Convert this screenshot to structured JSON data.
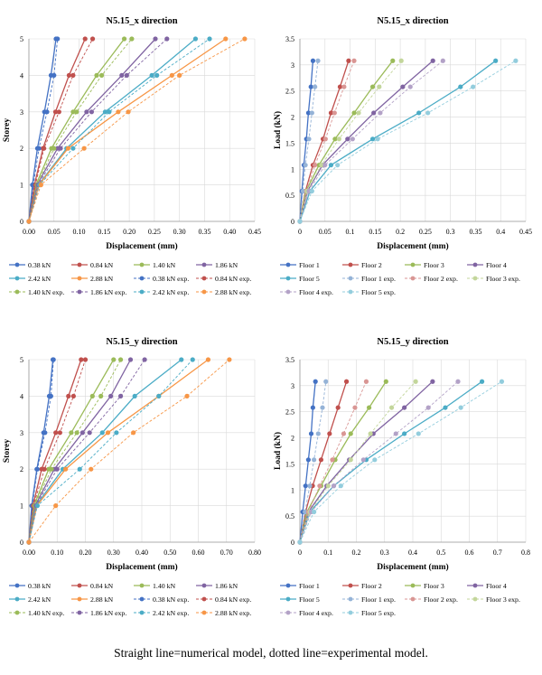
{
  "footnote": "Straight line=numerical model, dotted line=experimental model.",
  "colors": {
    "blue": "#4472c4",
    "red": "#c0504d",
    "green": "#9bbb59",
    "purple": "#8064a2",
    "teal": "#4bacc6",
    "orange": "#f79646",
    "lightblue": "#95b3d7",
    "pink": "#d99694",
    "lightgreen": "#c3d69b",
    "lightpurple": "#b3a2c7",
    "lightteal": "#93cddd"
  },
  "chart_data": [
    {
      "type": "line",
      "title": "N5.15_x direction",
      "xlabel": "Displacement (mm)",
      "ylabel": "Storey",
      "xlim": [
        0,
        0.45
      ],
      "ylim": [
        0,
        5
      ],
      "xticks": [
        "0.00",
        "0.05",
        "0.10",
        "0.15",
        "0.20",
        "0.25",
        "0.30",
        "0.35",
        "0.40",
        "0.45"
      ],
      "yticks": [
        "0",
        "1",
        "2",
        "3",
        "4",
        "5"
      ],
      "series": [
        {
          "name": "0.38 kN",
          "color": "#4472c4",
          "dashed": false,
          "x": [
            0,
            0.007,
            0.017,
            0.031,
            0.044,
            0.054
          ],
          "y": [
            0,
            1,
            2,
            3,
            4,
            5
          ]
        },
        {
          "name": "0.84 kN",
          "color": "#c0504d",
          "dashed": false,
          "x": [
            0,
            0.011,
            0.028,
            0.053,
            0.08,
            0.112
          ],
          "y": [
            0,
            1,
            2,
            3,
            4,
            5
          ]
        },
        {
          "name": "1.40 kN",
          "color": "#9bbb59",
          "dashed": false,
          "x": [
            0,
            0.014,
            0.045,
            0.088,
            0.135,
            0.19
          ],
          "y": [
            0,
            1,
            2,
            3,
            4,
            5
          ]
        },
        {
          "name": "1.86 kN",
          "color": "#8064a2",
          "dashed": false,
          "x": [
            0,
            0.016,
            0.057,
            0.115,
            0.185,
            0.252
          ],
          "y": [
            0,
            1,
            2,
            3,
            4,
            5
          ]
        },
        {
          "name": "2.42 kN",
          "color": "#4bacc6",
          "dashed": false,
          "x": [
            0,
            0.019,
            0.075,
            0.152,
            0.245,
            0.332
          ],
          "y": [
            0,
            1,
            2,
            3,
            4,
            5
          ]
        },
        {
          "name": "2.88 kN",
          "color": "#f79646",
          "dashed": false,
          "x": [
            0,
            0.02,
            0.078,
            0.178,
            0.285,
            0.392
          ],
          "y": [
            0,
            1,
            2,
            3,
            4,
            5
          ]
        },
        {
          "name": "0.38 kN exp.",
          "color": "#4472c4",
          "dashed": true,
          "x": [
            0,
            0.009,
            0.02,
            0.036,
            0.05,
            0.057
          ],
          "y": [
            0,
            1,
            2,
            3,
            4,
            5
          ]
        },
        {
          "name": "0.84 kN exp.",
          "color": "#c0504d",
          "dashed": true,
          "x": [
            0,
            0.013,
            0.03,
            0.06,
            0.088,
            0.127
          ],
          "y": [
            0,
            1,
            2,
            3,
            4,
            5
          ]
        },
        {
          "name": "1.40 kN exp.",
          "color": "#9bbb59",
          "dashed": true,
          "x": [
            0,
            0.016,
            0.05,
            0.095,
            0.145,
            0.205
          ],
          "y": [
            0,
            1,
            2,
            3,
            4,
            5
          ]
        },
        {
          "name": "1.86 kN exp.",
          "color": "#8064a2",
          "dashed": true,
          "x": [
            0,
            0.018,
            0.063,
            0.125,
            0.195,
            0.275
          ],
          "y": [
            0,
            1,
            2,
            3,
            4,
            5
          ]
        },
        {
          "name": "2.42 kN exp.",
          "color": "#4bacc6",
          "dashed": true,
          "x": [
            0,
            0.021,
            0.088,
            0.16,
            0.255,
            0.36
          ],
          "y": [
            0,
            1,
            2,
            3,
            4,
            5
          ]
        },
        {
          "name": "2.88 kN exp.",
          "color": "#f79646",
          "dashed": true,
          "x": [
            0,
            0.024,
            0.11,
            0.198,
            0.3,
            0.43
          ],
          "y": [
            0,
            1,
            2,
            3,
            4,
            5
          ]
        }
      ]
    },
    {
      "type": "line",
      "title": "N5.15_x direction",
      "xlabel": "Displacement (mm)",
      "ylabel": "Load (kN)",
      "xlim": [
        0,
        0.45
      ],
      "ylim": [
        0,
        3.5
      ],
      "xticks": [
        "0",
        "0.05",
        "0.1",
        "0.15",
        "0.2",
        "0.25",
        "0.3",
        "0.35",
        "0.4",
        "0.45"
      ],
      "yticks": [
        "0",
        "0.5",
        "1",
        "1.5",
        "2",
        "2.5",
        "3",
        "3.5"
      ],
      "series": [
        {
          "name": "Floor 1",
          "color": "#4472c4",
          "dashed": false,
          "x": [
            0,
            0.004,
            0.008,
            0.013,
            0.017,
            0.022,
            0.026
          ],
          "y": [
            0,
            0.58,
            1.08,
            1.58,
            2.08,
            2.58,
            3.08
          ]
        },
        {
          "name": "Floor 2",
          "color": "#c0504d",
          "dashed": false,
          "x": [
            0,
            0.011,
            0.026,
            0.046,
            0.062,
            0.08,
            0.097
          ],
          "y": [
            0,
            0.58,
            1.08,
            1.58,
            2.08,
            2.58,
            3.08
          ]
        },
        {
          "name": "Floor 3",
          "color": "#9bbb59",
          "dashed": false,
          "x": [
            0,
            0.012,
            0.038,
            0.07,
            0.108,
            0.145,
            0.185
          ],
          "y": [
            0,
            0.58,
            1.08,
            1.58,
            2.08,
            2.58,
            3.08
          ]
        },
        {
          "name": "Floor 4",
          "color": "#8064a2",
          "dashed": false,
          "x": [
            0,
            0.015,
            0.045,
            0.095,
            0.147,
            0.205,
            0.265
          ],
          "y": [
            0,
            0.58,
            1.08,
            1.58,
            2.08,
            2.58,
            3.08
          ]
        },
        {
          "name": "Floor 5",
          "color": "#4bacc6",
          "dashed": false,
          "x": [
            0,
            0.02,
            0.062,
            0.145,
            0.237,
            0.32,
            0.39
          ],
          "y": [
            0,
            0.58,
            1.08,
            1.58,
            2.08,
            2.58,
            3.08
          ]
        },
        {
          "name": "Floor 1 exp.",
          "color": "#95b3d7",
          "dashed": true,
          "x": [
            0,
            0.006,
            0.011,
            0.018,
            0.024,
            0.03,
            0.036
          ],
          "y": [
            0,
            0.58,
            1.08,
            1.58,
            2.08,
            2.58,
            3.08
          ]
        },
        {
          "name": "Floor 2 exp.",
          "color": "#d99694",
          "dashed": true,
          "x": [
            0,
            0.013,
            0.03,
            0.051,
            0.069,
            0.088,
            0.108
          ],
          "y": [
            0,
            0.58,
            1.08,
            1.58,
            2.08,
            2.58,
            3.08
          ]
        },
        {
          "name": "Floor 3 exp.",
          "color": "#c3d69b",
          "dashed": true,
          "x": [
            0,
            0.014,
            0.043,
            0.078,
            0.117,
            0.158,
            0.202
          ],
          "y": [
            0,
            0.58,
            1.08,
            1.58,
            2.08,
            2.58,
            3.08
          ]
        },
        {
          "name": "Floor 4 exp.",
          "color": "#b3a2c7",
          "dashed": true,
          "x": [
            0,
            0.018,
            0.05,
            0.105,
            0.16,
            0.22,
            0.285
          ],
          "y": [
            0,
            0.58,
            1.08,
            1.58,
            2.08,
            2.58,
            3.08
          ]
        },
        {
          "name": "Floor 5 exp.",
          "color": "#93cddd",
          "dashed": true,
          "x": [
            0,
            0.024,
            0.075,
            0.155,
            0.255,
            0.345,
            0.43
          ],
          "y": [
            0,
            0.58,
            1.08,
            1.58,
            2.08,
            2.58,
            3.08
          ]
        }
      ]
    },
    {
      "type": "line",
      "title": "N5.15_y direction",
      "xlabel": "Displacement (mm)",
      "ylabel": "Storey",
      "xlim": [
        0,
        0.8
      ],
      "ylim": [
        0,
        5
      ],
      "xticks": [
        "0.00",
        "0.10",
        "0.20",
        "0.30",
        "0.40",
        "0.50",
        "0.60",
        "0.70",
        "0.80"
      ],
      "yticks": [
        "0",
        "1",
        "2",
        "3",
        "4",
        "5"
      ],
      "series": [
        {
          "name": "0.38 kN",
          "color": "#4472c4",
          "dashed": false,
          "x": [
            0,
            0.01,
            0.028,
            0.052,
            0.072,
            0.085
          ],
          "y": [
            0,
            1,
            2,
            3,
            4,
            5
          ]
        },
        {
          "name": "0.84 kN",
          "color": "#c0504d",
          "dashed": false,
          "x": [
            0,
            0.014,
            0.045,
            0.095,
            0.14,
            0.185
          ],
          "y": [
            0,
            1,
            2,
            3,
            4,
            5
          ]
        },
        {
          "name": "1.40 kN",
          "color": "#9bbb59",
          "dashed": false,
          "x": [
            0,
            0.018,
            0.07,
            0.15,
            0.225,
            0.3
          ],
          "y": [
            0,
            1,
            2,
            3,
            4,
            5
          ]
        },
        {
          "name": "1.86 kN",
          "color": "#8064a2",
          "dashed": false,
          "x": [
            0,
            0.022,
            0.09,
            0.19,
            0.29,
            0.36
          ],
          "y": [
            0,
            1,
            2,
            3,
            4,
            5
          ]
        },
        {
          "name": "2.42 kN",
          "color": "#4bacc6",
          "dashed": false,
          "x": [
            0,
            0.025,
            0.12,
            0.26,
            0.375,
            0.54
          ],
          "y": [
            0,
            1,
            2,
            3,
            4,
            5
          ]
        },
        {
          "name": "2.88 kN",
          "color": "#f79646",
          "dashed": false,
          "x": [
            0,
            0.028,
            0.13,
            0.28,
            0.46,
            0.635
          ],
          "y": [
            0,
            1,
            2,
            3,
            4,
            5
          ]
        },
        {
          "name": "0.38 kN exp.",
          "color": "#4472c4",
          "dashed": true,
          "x": [
            0,
            0.012,
            0.03,
            0.057,
            0.078,
            0.087
          ],
          "y": [
            0,
            1,
            2,
            3,
            4,
            5
          ]
        },
        {
          "name": "0.84 kN exp.",
          "color": "#c0504d",
          "dashed": true,
          "x": [
            0,
            0.016,
            0.055,
            0.11,
            0.158,
            0.2
          ],
          "y": [
            0,
            1,
            2,
            3,
            4,
            5
          ]
        },
        {
          "name": "1.40 kN exp.",
          "color": "#9bbb59",
          "dashed": true,
          "x": [
            0,
            0.02,
            0.08,
            0.17,
            0.255,
            0.325
          ],
          "y": [
            0,
            1,
            2,
            3,
            4,
            5
          ]
        },
        {
          "name": "1.86 kN exp.",
          "color": "#8064a2",
          "dashed": true,
          "x": [
            0,
            0.025,
            0.1,
            0.215,
            0.325,
            0.41
          ],
          "y": [
            0,
            1,
            2,
            3,
            4,
            5
          ]
        },
        {
          "name": "2.42 kN exp.",
          "color": "#4bacc6",
          "dashed": true,
          "x": [
            0,
            0.03,
            0.18,
            0.31,
            0.46,
            0.58
          ],
          "y": [
            0,
            1,
            2,
            3,
            4,
            5
          ]
        },
        {
          "name": "2.88 kN exp.",
          "color": "#f79646",
          "dashed": true,
          "x": [
            0,
            0.095,
            0.22,
            0.37,
            0.56,
            0.71
          ],
          "y": [
            0,
            1,
            2,
            3,
            4,
            5
          ]
        }
      ]
    },
    {
      "type": "line",
      "title": "N5.15_y direction",
      "xlabel": "Displacement (mm)",
      "ylabel": "Load (kN)",
      "xlim": [
        0,
        0.8
      ],
      "ylim": [
        0,
        3.5
      ],
      "xticks": [
        "0",
        "0.1",
        "0.2",
        "0.3",
        "0.4",
        "0.5",
        "0.6",
        "0.7",
        "0.8"
      ],
      "yticks": [
        "0",
        "0.5",
        "1",
        "1.5",
        "2",
        "2.5",
        "3",
        "3.5"
      ],
      "series": [
        {
          "name": "Floor 1",
          "color": "#4472c4",
          "dashed": false,
          "x": [
            0,
            0.01,
            0.02,
            0.03,
            0.04,
            0.046,
            0.055
          ],
          "y": [
            0,
            0.58,
            1.08,
            1.58,
            2.08,
            2.58,
            3.08
          ]
        },
        {
          "name": "Floor 2",
          "color": "#c0504d",
          "dashed": false,
          "x": [
            0,
            0.02,
            0.045,
            0.075,
            0.105,
            0.135,
            0.165
          ],
          "y": [
            0,
            0.58,
            1.08,
            1.58,
            2.08,
            2.58,
            3.08
          ]
        },
        {
          "name": "Floor 3",
          "color": "#9bbb59",
          "dashed": false,
          "x": [
            0,
            0.025,
            0.075,
            0.125,
            0.18,
            0.245,
            0.305
          ],
          "y": [
            0,
            0.58,
            1.08,
            1.58,
            2.08,
            2.58,
            3.08
          ]
        },
        {
          "name": "Floor 4",
          "color": "#8064a2",
          "dashed": false,
          "x": [
            0,
            0.03,
            0.095,
            0.175,
            0.26,
            0.37,
            0.47
          ],
          "y": [
            0,
            0.58,
            1.08,
            1.58,
            2.08,
            2.58,
            3.08
          ]
        },
        {
          "name": "Floor 5",
          "color": "#4bacc6",
          "dashed": false,
          "x": [
            0,
            0.035,
            0.12,
            0.235,
            0.37,
            0.515,
            0.645
          ],
          "y": [
            0,
            0.58,
            1.08,
            1.58,
            2.08,
            2.58,
            3.08
          ]
        },
        {
          "name": "Floor 1 exp.",
          "color": "#95b3d7",
          "dashed": true,
          "x": [
            0,
            0.018,
            0.035,
            0.05,
            0.065,
            0.08,
            0.092
          ],
          "y": [
            0,
            0.58,
            1.08,
            1.58,
            2.08,
            2.58,
            3.08
          ]
        },
        {
          "name": "Floor 2 exp.",
          "color": "#d99694",
          "dashed": true,
          "x": [
            0,
            0.03,
            0.07,
            0.115,
            0.155,
            0.195,
            0.235
          ],
          "y": [
            0,
            0.58,
            1.08,
            1.58,
            2.08,
            2.58,
            3.08
          ]
        },
        {
          "name": "Floor 3 exp.",
          "color": "#c3d69b",
          "dashed": true,
          "x": [
            0,
            0.035,
            0.1,
            0.18,
            0.25,
            0.325,
            0.41
          ],
          "y": [
            0,
            0.58,
            1.08,
            1.58,
            2.08,
            2.58,
            3.08
          ]
        },
        {
          "name": "Floor 4 exp.",
          "color": "#b3a2c7",
          "dashed": true,
          "x": [
            0,
            0.04,
            0.12,
            0.225,
            0.34,
            0.455,
            0.56
          ],
          "y": [
            0,
            0.58,
            1.08,
            1.58,
            2.08,
            2.58,
            3.08
          ]
        },
        {
          "name": "Floor 5 exp.",
          "color": "#93cddd",
          "dashed": true,
          "x": [
            0,
            0.05,
            0.145,
            0.265,
            0.42,
            0.57,
            0.715
          ],
          "y": [
            0,
            0.58,
            1.08,
            1.58,
            2.08,
            2.58,
            3.08
          ]
        }
      ]
    }
  ]
}
